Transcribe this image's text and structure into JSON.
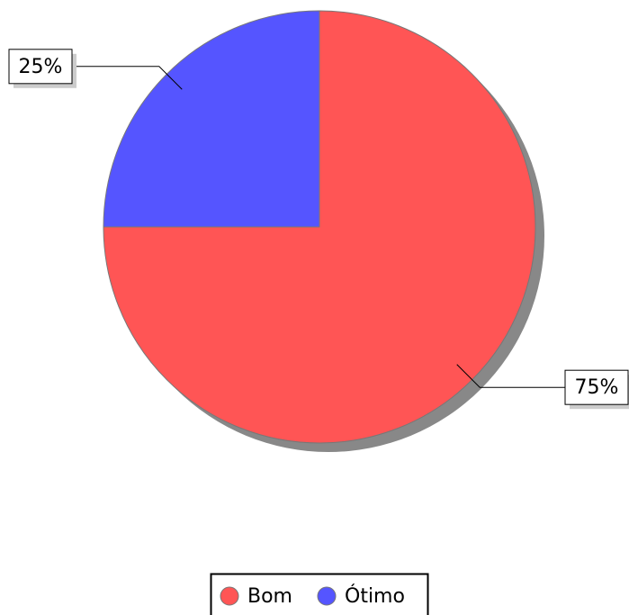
{
  "chart_data": {
    "type": "pie",
    "categories": [
      "Bom",
      "Ótimo"
    ],
    "values": [
      75,
      25
    ],
    "value_labels": [
      "75%",
      "25%"
    ],
    "colors": [
      "#ff5555",
      "#5555ff"
    ],
    "legend": "bottom"
  }
}
